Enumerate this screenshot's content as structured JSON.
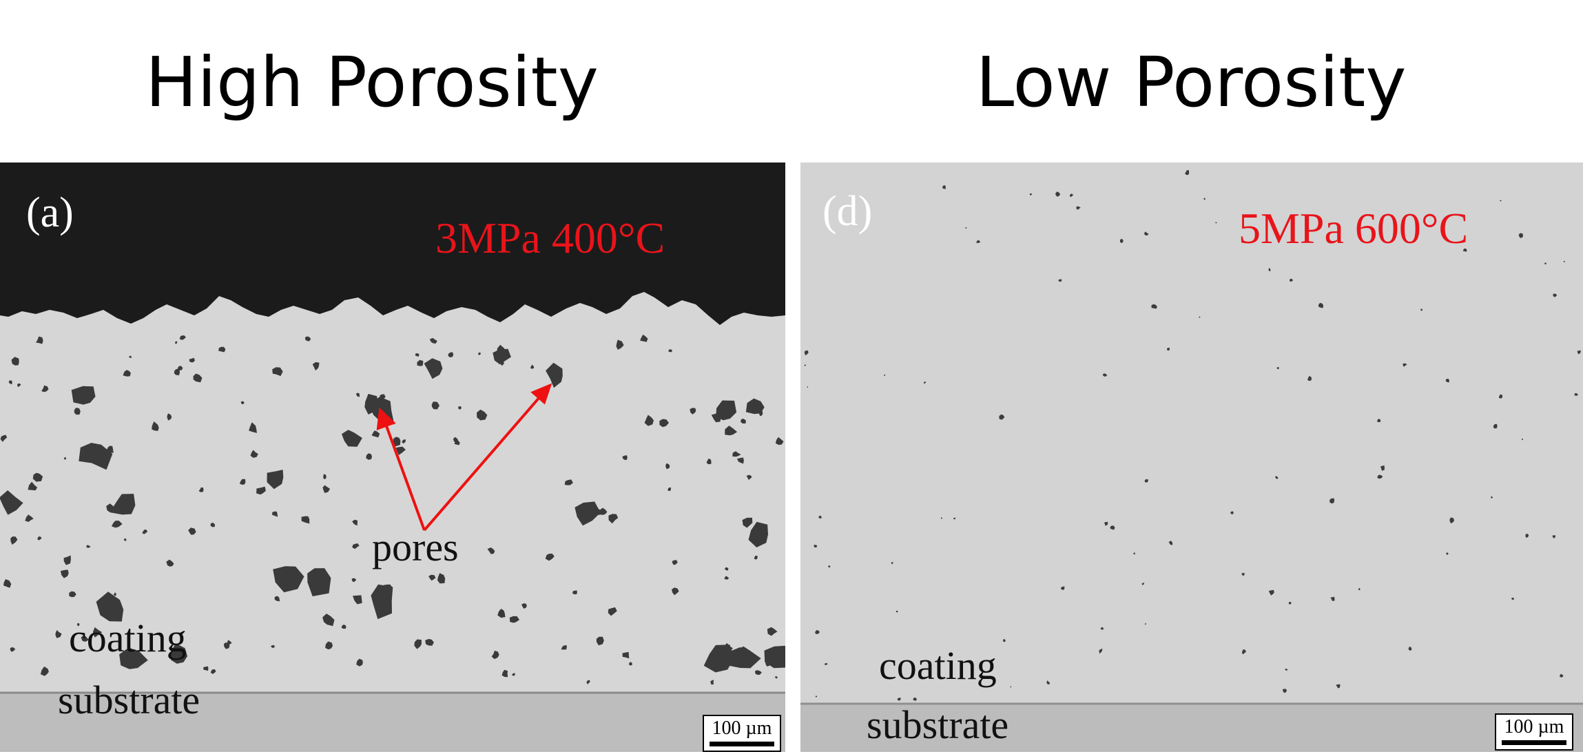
{
  "titles": {
    "left": "High Porosity",
    "right": "Low Porosity"
  },
  "panels": [
    {
      "letter": "(a)",
      "condition": "3MPa 400°C",
      "labels": {
        "pores": "pores",
        "coating": "coating",
        "substrate": "substrate"
      },
      "scale_bar": "100 µm"
    },
    {
      "letter": "(d)",
      "condition": "5MPa 600°C",
      "labels": {
        "coating": "coating",
        "substrate": "substrate"
      },
      "scale_bar": "100 µm"
    }
  ],
  "colors": {
    "condition_text": "#e8141a",
    "arrow": "#ee1111",
    "background_dark": "#1a1a1a",
    "coating_a": "#d6d6d6",
    "coating_d": "#d3d3d3",
    "substrate": "#bdbdbd"
  }
}
